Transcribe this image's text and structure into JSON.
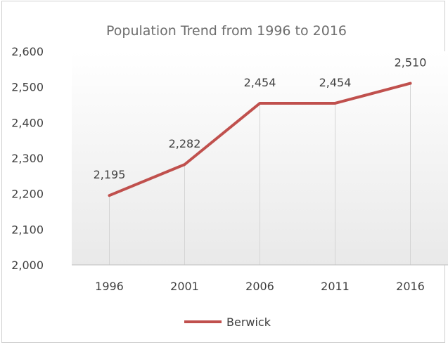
{
  "chart_data": {
    "type": "line",
    "title": "Population Trend from 1996 to 2016",
    "categories": [
      "1996",
      "2001",
      "2006",
      "2011",
      "2016"
    ],
    "series": [
      {
        "name": "Berwick",
        "values": [
          2195,
          2282,
          2454,
          2454,
          2510
        ],
        "data_labels": [
          "2,195",
          "2,282",
          "2,454",
          "2,454",
          "2,510"
        ],
        "color": "#c0504d"
      }
    ],
    "y_ticks": [
      "2,000",
      "2,100",
      "2,200",
      "2,300",
      "2,400",
      "2,500",
      "2,600"
    ],
    "y_tick_values": [
      2000,
      2100,
      2200,
      2300,
      2400,
      2500,
      2600
    ],
    "ylim": [
      2000,
      2600
    ],
    "xlabel": "",
    "ylabel": "",
    "legend_position": "bottom",
    "vertical_gridlines": true,
    "horizontal_gridlines": false,
    "plot_background": "gradient-light-grey"
  }
}
